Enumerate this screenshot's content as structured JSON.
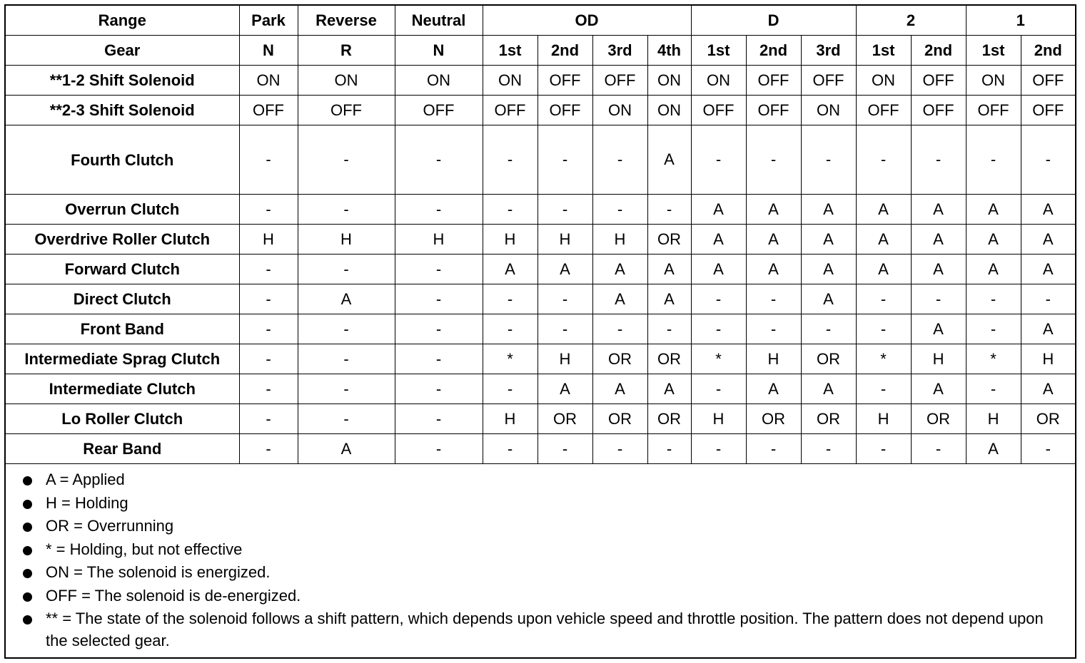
{
  "header": {
    "range_label": "Range",
    "gear_label": "Gear",
    "ranges": [
      {
        "label": "Park",
        "span": 1
      },
      {
        "label": "Reverse",
        "span": 1
      },
      {
        "label": "Neutral",
        "span": 1
      },
      {
        "label": "OD",
        "span": 4
      },
      {
        "label": "D",
        "span": 3
      },
      {
        "label": "2",
        "span": 2
      },
      {
        "label": "1",
        "span": 2
      }
    ],
    "gears": [
      "N",
      "R",
      "N",
      "1st",
      "2nd",
      "3rd",
      "4th",
      "1st",
      "2nd",
      "3rd",
      "1st",
      "2nd",
      "1st",
      "2nd"
    ]
  },
  "rows": [
    {
      "label": "**1-2 Shift Solenoid",
      "cells": [
        "ON",
        "ON",
        "ON",
        "ON",
        "OFF",
        "OFF",
        "ON",
        "ON",
        "OFF",
        "OFF",
        "ON",
        "OFF",
        "ON",
        "OFF"
      ]
    },
    {
      "label": "**2-3 Shift Solenoid",
      "cells": [
        "OFF",
        "OFF",
        "OFF",
        "OFF",
        "OFF",
        "ON",
        "ON",
        "OFF",
        "OFF",
        "ON",
        "OFF",
        "OFF",
        "OFF",
        "OFF"
      ]
    },
    {
      "label": "Fourth Clutch",
      "tall": true,
      "cells": [
        "-",
        "-",
        "-",
        "-",
        "-",
        "-",
        "A",
        "-",
        "-",
        "-",
        "-",
        "-",
        "-",
        "-"
      ]
    },
    {
      "label": "Overrun Clutch",
      "cells": [
        "-",
        "-",
        "-",
        "-",
        "-",
        "-",
        "-",
        "A",
        "A",
        "A",
        "A",
        "A",
        "A",
        "A"
      ]
    },
    {
      "label": "Overdrive Roller Clutch",
      "cells": [
        "H",
        "H",
        "H",
        "H",
        "H",
        "H",
        "OR",
        "A",
        "A",
        "A",
        "A",
        "A",
        "A",
        "A"
      ]
    },
    {
      "label": "Forward Clutch",
      "cells": [
        "-",
        "-",
        "-",
        "A",
        "A",
        "A",
        "A",
        "A",
        "A",
        "A",
        "A",
        "A",
        "A",
        "A"
      ]
    },
    {
      "label": "Direct Clutch",
      "cells": [
        "-",
        "A",
        "-",
        "-",
        "-",
        "A",
        "A",
        "-",
        "-",
        "A",
        "-",
        "-",
        "-",
        "-"
      ]
    },
    {
      "label": "Front Band",
      "cells": [
        "-",
        "-",
        "-",
        "-",
        "-",
        "-",
        "-",
        "-",
        "-",
        "-",
        "-",
        "A",
        "-",
        "A"
      ]
    },
    {
      "label": "Intermediate Sprag Clutch",
      "cells": [
        "-",
        "-",
        "-",
        "*",
        "H",
        "OR",
        "OR",
        "*",
        "H",
        "OR",
        "*",
        "H",
        "*",
        "H"
      ]
    },
    {
      "label": "Intermediate Clutch",
      "cells": [
        "-",
        "-",
        "-",
        "-",
        "A",
        "A",
        "A",
        "-",
        "A",
        "A",
        "-",
        "A",
        "-",
        "A"
      ]
    },
    {
      "label": "Lo Roller Clutch",
      "cells": [
        "-",
        "-",
        "-",
        "H",
        "OR",
        "OR",
        "OR",
        "H",
        "OR",
        "OR",
        "H",
        "OR",
        "H",
        "OR"
      ]
    },
    {
      "label": "Rear Band",
      "cells": [
        "-",
        "A",
        "-",
        "-",
        "-",
        "-",
        "-",
        "-",
        "-",
        "-",
        "-",
        "-",
        "A",
        "-"
      ]
    }
  ],
  "legend": [
    "A = Applied",
    "H = Holding",
    "OR = Overrunning",
    "* = Holding, but not effective",
    "ON = The solenoid is energized.",
    "OFF = The solenoid is de-energized.",
    "** = The state of the solenoid follows a shift pattern, which depends upon vehicle speed and throttle position. The pattern does not depend upon the selected gear."
  ]
}
